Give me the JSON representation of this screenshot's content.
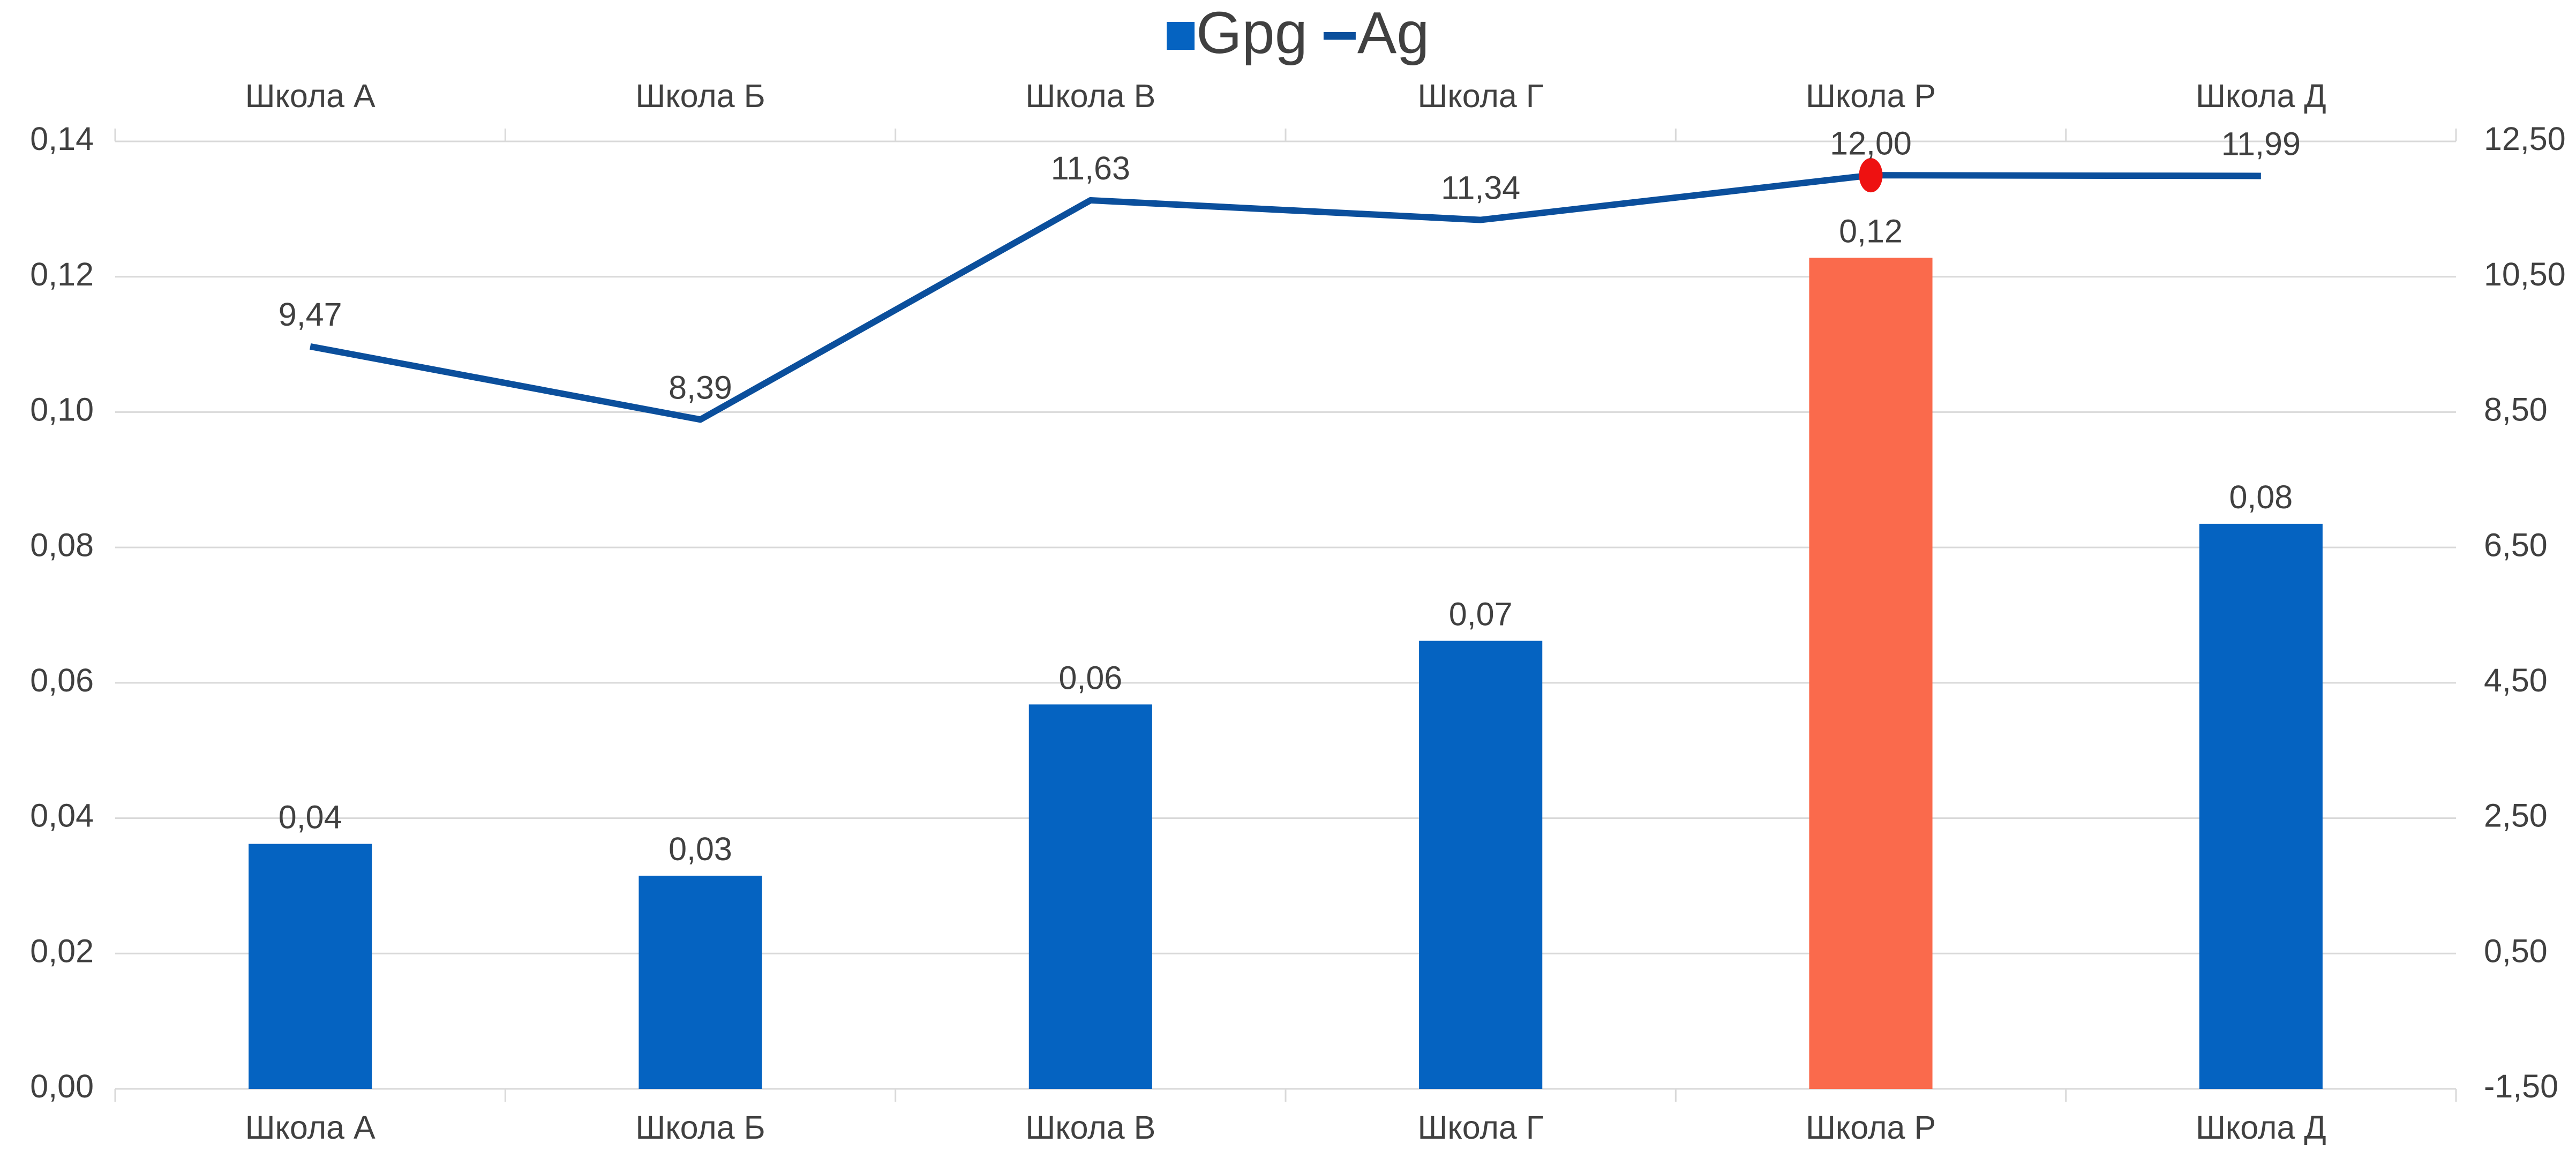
{
  "chart_data": {
    "type": "bar-line",
    "categories": [
      "Школа А",
      "Школа Б",
      "Школа В",
      "Школа Г",
      "Школа Р",
      "Школа Д"
    ],
    "series": [
      {
        "name": "Gpg",
        "type": "bar",
        "axis": "y",
        "color": "#0563c1",
        "colors": [
          "#0563c1",
          "#0563c1",
          "#0563c1",
          "#0563c1",
          "#fa6a4c",
          "#0563c1"
        ],
        "values": [
          0.0362,
          0.0315,
          0.0568,
          0.0662,
          0.1228,
          0.0835
        ],
        "value_labels": [
          "0,04",
          "0,03",
          "0,06",
          "0,07",
          "0,12",
          "0,08"
        ]
      },
      {
        "name": "Ag",
        "type": "line",
        "axis": "y2",
        "color": "#0b4f9c",
        "values": [
          9.47,
          8.39,
          11.63,
          11.34,
          12.0,
          11.99
        ],
        "value_labels": [
          "9,47",
          "8,39",
          "11,63",
          "11,34",
          "12,00",
          "11,99"
        ],
        "markers": [
          {
            "index": 4,
            "color": "#ee1111"
          }
        ]
      }
    ],
    "ylim": [
      0,
      0.14
    ],
    "yticks": [
      {
        "value": 0,
        "label": "0,00"
      },
      {
        "value": 0.02,
        "label": "0,02"
      },
      {
        "value": 0.04,
        "label": "0,04"
      },
      {
        "value": 0.06,
        "label": "0,06"
      },
      {
        "value": 0.08,
        "label": "0,08"
      },
      {
        "value": 0.1,
        "label": "0,10"
      },
      {
        "value": 0.12,
        "label": "0,12"
      },
      {
        "value": 0.14,
        "label": "0,14"
      }
    ],
    "y2lim": [
      -1.5,
      12.5
    ],
    "y2ticks": [
      {
        "value": -1.5,
        "label": "-1,50"
      },
      {
        "value": 0.5,
        "label": "0,50"
      },
      {
        "value": 2.5,
        "label": "2,50"
      },
      {
        "value": 4.5,
        "label": "4,50"
      },
      {
        "value": 6.5,
        "label": "6,50"
      },
      {
        "value": 8.5,
        "label": "8,50"
      },
      {
        "value": 10.5,
        "label": "10,50"
      },
      {
        "value": 12.5,
        "label": "12,50"
      }
    ],
    "grid": true,
    "legend": "top"
  }
}
